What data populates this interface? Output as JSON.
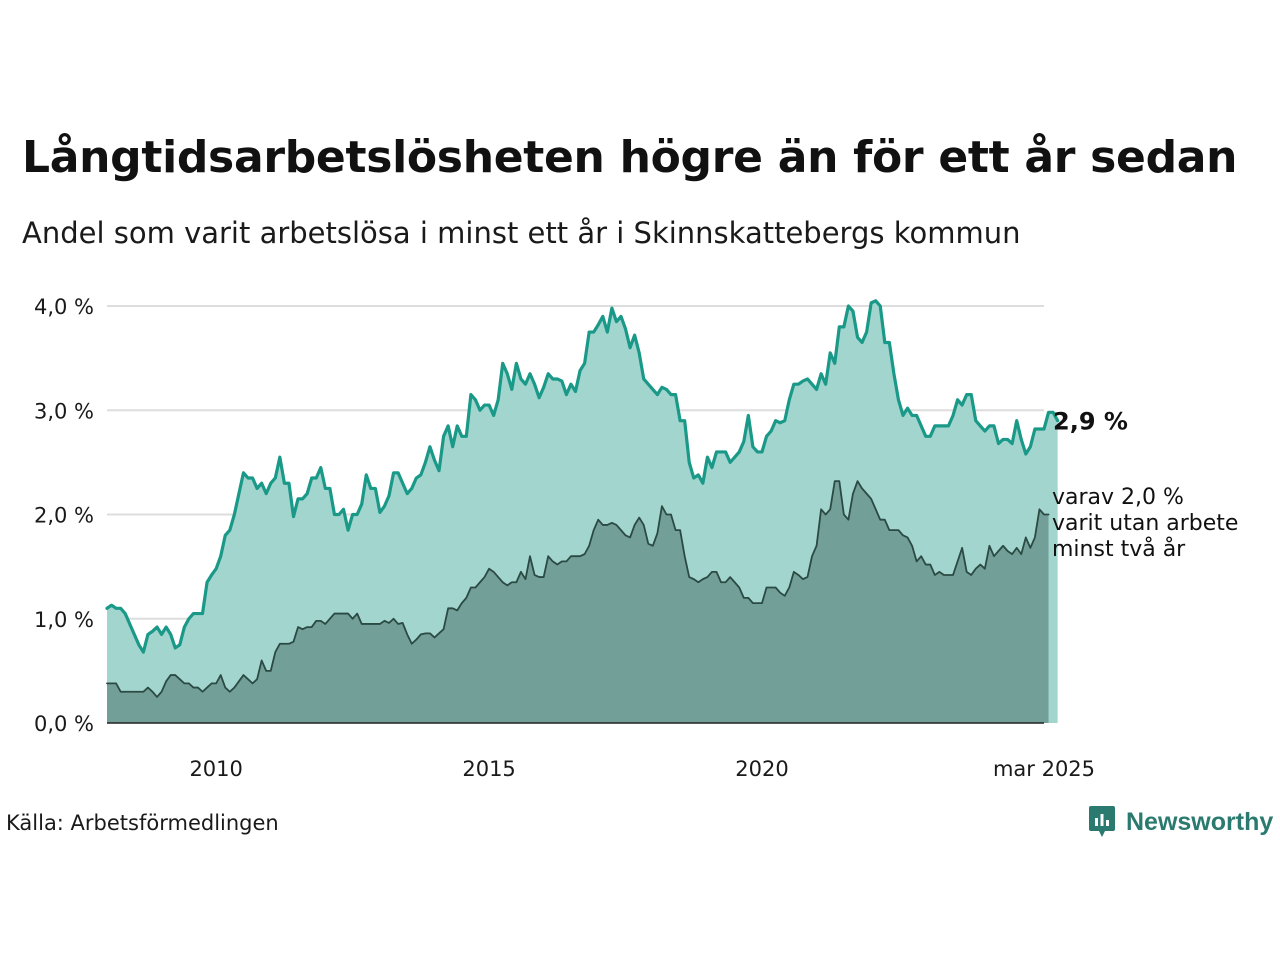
{
  "header": {
    "title": "Långtidsarbetslösheten högre än för ett år sedan",
    "subtitle": "Andel som varit arbetslösa i minst ett år i Skinnskattebergs kommun"
  },
  "colors": {
    "total_line": "#1a9988",
    "total_fill": "#a3d5cf",
    "long_line": "#2b4a44",
    "long_fill": "#729f98",
    "grid": "#dddddd",
    "baseline": "#222222"
  },
  "chart_data": {
    "type": "area",
    "title": "Långtidsarbetslösheten högre än för ett år sedan",
    "subtitle": "Andel som varit arbetslösa i minst ett år i Skinnskattebergs kommun",
    "start": "2008-01",
    "end": "2025-03",
    "frequency": "monthly",
    "ylim": [
      0,
      4.0
    ],
    "yticks": [
      0,
      1.0,
      2.0,
      3.0,
      4.0
    ],
    "ytick_labels": [
      "0,0 %",
      "1,0 %",
      "2,0 %",
      "3,0 %",
      "4,0 %"
    ],
    "xticks": [
      "2010-01",
      "2015-01",
      "2020-01",
      "2025-03"
    ],
    "xtick_labels": [
      "2010",
      "2015",
      "2020",
      "mar 2025"
    ],
    "grid": true,
    "legend": "none",
    "series": [
      {
        "values": [
          1.1,
          1.13,
          1.1,
          1.1,
          1.05,
          0.95,
          0.85,
          0.75,
          0.68,
          0.85,
          0.88,
          0.92,
          0.85,
          0.92,
          0.85,
          0.72,
          0.75,
          0.92,
          1.0,
          1.05,
          1.05,
          1.05,
          1.35,
          1.42,
          1.48,
          1.6,
          1.8,
          1.85,
          2.0,
          2.2,
          2.4,
          2.35,
          2.35,
          2.25,
          2.3,
          2.2,
          2.3,
          2.35,
          2.55,
          2.3,
          2.3,
          1.98,
          2.15,
          2.15,
          2.2,
          2.35,
          2.35,
          2.45,
          2.25,
          2.25,
          2.0,
          2.0,
          2.05,
          1.85,
          2.0,
          2.0,
          2.1,
          2.38,
          2.25,
          2.25,
          2.02,
          2.08,
          2.18,
          2.4,
          2.4,
          2.3,
          2.2,
          2.25,
          2.35,
          2.38,
          2.5,
          2.65,
          2.52,
          2.42,
          2.75,
          2.85,
          2.65,
          2.85,
          2.75,
          2.75,
          3.15,
          3.1,
          3.0,
          3.05,
          3.05,
          2.95,
          3.1,
          3.45,
          3.35,
          3.2,
          3.45,
          3.3,
          3.25,
          3.35,
          3.25,
          3.12,
          3.22,
          3.35,
          3.3,
          3.3,
          3.28,
          3.15,
          3.25,
          3.18,
          3.38,
          3.45,
          3.75,
          3.75,
          3.82,
          3.9,
          3.75,
          3.98,
          3.85,
          3.9,
          3.78,
          3.6,
          3.72,
          3.55,
          3.3,
          3.25,
          3.2,
          3.15,
          3.22,
          3.2,
          3.15,
          3.15,
          2.9,
          2.9,
          2.5,
          2.35,
          2.38,
          2.3,
          2.55,
          2.45,
          2.6,
          2.6,
          2.6,
          2.5,
          2.55,
          2.6,
          2.7,
          2.95,
          2.65,
          2.6,
          2.6,
          2.75,
          2.8,
          2.9,
          2.88,
          2.9,
          3.1,
          3.25,
          3.25,
          3.28,
          3.3,
          3.25,
          3.2,
          3.35,
          3.25,
          3.55,
          3.45,
          3.8,
          3.8,
          4.0,
          3.95,
          3.7,
          3.65,
          3.75,
          4.03,
          4.05,
          4.0,
          3.65,
          3.65,
          3.35,
          3.1,
          2.95,
          3.02,
          2.95,
          2.95,
          2.85,
          2.75,
          2.75,
          2.85,
          2.85,
          2.85,
          2.85,
          2.95,
          3.1,
          3.05,
          3.15,
          3.15,
          2.9,
          2.85,
          2.8,
          2.85,
          2.85,
          2.68,
          2.72,
          2.72,
          2.68,
          2.9,
          2.72,
          2.58,
          2.65,
          2.82,
          2.82,
          2.82,
          2.98,
          2.98,
          2.9
        ]
      },
      {
        "values": [
          0.38,
          0.38,
          0.38,
          0.3,
          0.3,
          0.3,
          0.3,
          0.3,
          0.3,
          0.34,
          0.3,
          0.25,
          0.3,
          0.4,
          0.46,
          0.46,
          0.42,
          0.38,
          0.38,
          0.34,
          0.34,
          0.3,
          0.34,
          0.38,
          0.38,
          0.46,
          0.34,
          0.3,
          0.34,
          0.4,
          0.46,
          0.42,
          0.38,
          0.42,
          0.6,
          0.5,
          0.5,
          0.68,
          0.76,
          0.76,
          0.76,
          0.78,
          0.92,
          0.9,
          0.92,
          0.92,
          0.98,
          0.98,
          0.95,
          1.0,
          1.05,
          1.05,
          1.05,
          1.05,
          1.0,
          1.05,
          0.95,
          0.95,
          0.95,
          0.95,
          0.95,
          0.98,
          0.96,
          1.0,
          0.95,
          0.96,
          0.85,
          0.76,
          0.8,
          0.85,
          0.86,
          0.86,
          0.82,
          0.86,
          0.9,
          1.1,
          1.1,
          1.08,
          1.15,
          1.2,
          1.3,
          1.3,
          1.35,
          1.4,
          1.48,
          1.45,
          1.4,
          1.35,
          1.32,
          1.35,
          1.35,
          1.45,
          1.38,
          1.6,
          1.42,
          1.4,
          1.4,
          1.6,
          1.55,
          1.52,
          1.55,
          1.55,
          1.6,
          1.6,
          1.6,
          1.62,
          1.7,
          1.85,
          1.95,
          1.9,
          1.9,
          1.92,
          1.9,
          1.85,
          1.8,
          1.78,
          1.9,
          1.97,
          1.9,
          1.72,
          1.7,
          1.82,
          2.08,
          2.0,
          2.0,
          1.85,
          1.85,
          1.6,
          1.4,
          1.38,
          1.35,
          1.38,
          1.4,
          1.45,
          1.45,
          1.35,
          1.35,
          1.4,
          1.35,
          1.3,
          1.2,
          1.2,
          1.15,
          1.15,
          1.15,
          1.3,
          1.3,
          1.3,
          1.25,
          1.22,
          1.3,
          1.45,
          1.42,
          1.38,
          1.4,
          1.6,
          1.7,
          2.05,
          2.0,
          2.05,
          2.32,
          2.32,
          2.0,
          1.95,
          2.2,
          2.32,
          2.25,
          2.2,
          2.15,
          2.05,
          1.95,
          1.95,
          1.85,
          1.85,
          1.85,
          1.8,
          1.78,
          1.7,
          1.55,
          1.6,
          1.52,
          1.52,
          1.42,
          1.45,
          1.42,
          1.42,
          1.42,
          1.55,
          1.68,
          1.45,
          1.42,
          1.48,
          1.52,
          1.48,
          1.7,
          1.6,
          1.65,
          1.7,
          1.65,
          1.62,
          1.68,
          1.62,
          1.78,
          1.68,
          1.78,
          2.05,
          2.0,
          2.0
        ]
      }
    ],
    "annotations": [
      {
        "series": 0,
        "text": "2,9 %"
      },
      {
        "series": 1,
        "text": "varav 2,0 %\nvarit utan arbete\nminst två år"
      }
    ]
  },
  "footer": {
    "source": "Källa: Arbetsförmedlingen",
    "logo_text": "Newsworthy"
  }
}
